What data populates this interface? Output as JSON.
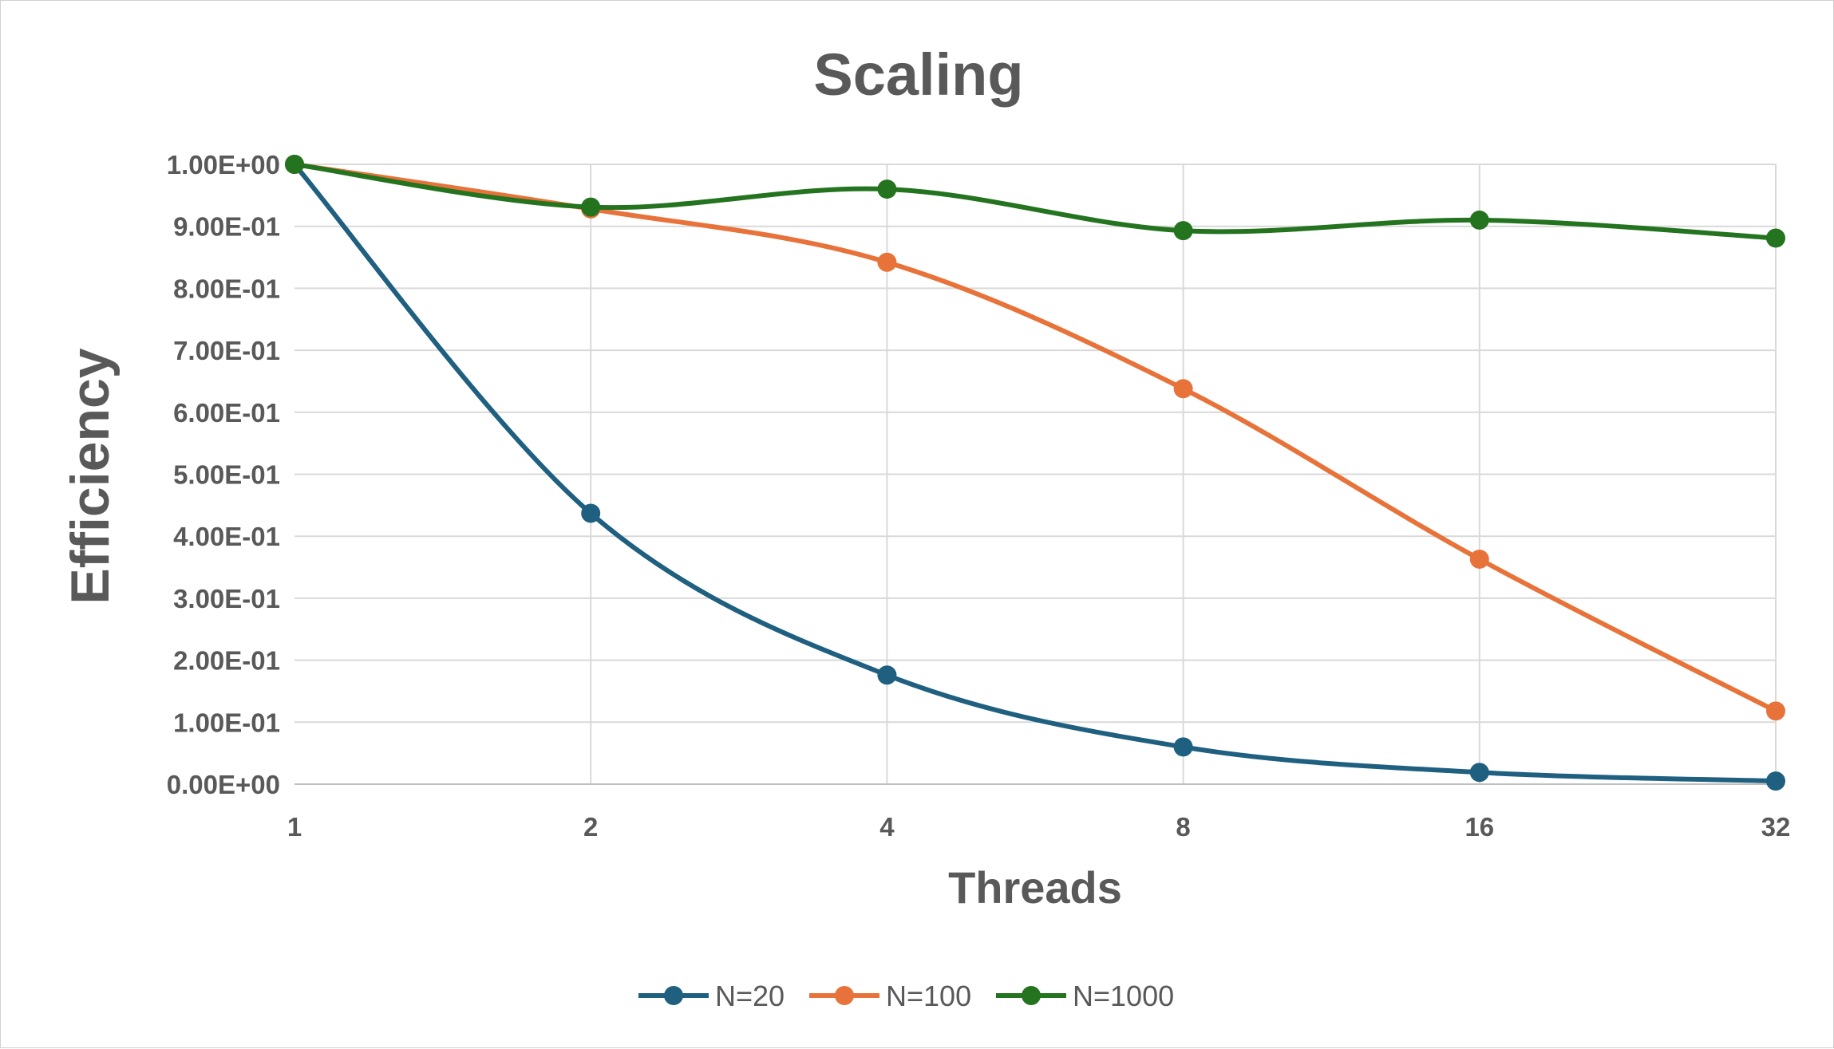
{
  "chart_data": {
    "type": "line",
    "title": "Scaling",
    "xlabel": "Threads",
    "ylabel": "Efficiency",
    "x": [
      1,
      2,
      4,
      8,
      16,
      32
    ],
    "x_tick_labels": [
      "1",
      "2",
      "4",
      "8",
      "16",
      "32"
    ],
    "x_scale": "log2",
    "ylim": [
      0,
      1
    ],
    "y_ticks": [
      0,
      0.1,
      0.2,
      0.3,
      0.4,
      0.5,
      0.6,
      0.7,
      0.8,
      0.9,
      1.0
    ],
    "y_tick_labels": [
      "0.00E+00",
      "1.00E-01",
      "2.00E-01",
      "3.00E-01",
      "4.00E-01",
      "5.00E-01",
      "6.00E-01",
      "7.00E-01",
      "8.00E-01",
      "9.00E-01",
      "1.00E+00"
    ],
    "grid": true,
    "smooth": true,
    "legend_position": "bottom",
    "series": [
      {
        "name": "N=20",
        "color": "#1f5f7f",
        "values": [
          1.0,
          0.437,
          0.176,
          0.06,
          0.019,
          0.005
        ]
      },
      {
        "name": "N=100",
        "color": "#e8733a",
        "values": [
          1.0,
          0.928,
          0.842,
          0.638,
          0.363,
          0.118
        ]
      },
      {
        "name": "N=1000",
        "color": "#23731f",
        "values": [
          1.0,
          0.931,
          0.96,
          0.893,
          0.91,
          0.881
        ]
      }
    ]
  }
}
